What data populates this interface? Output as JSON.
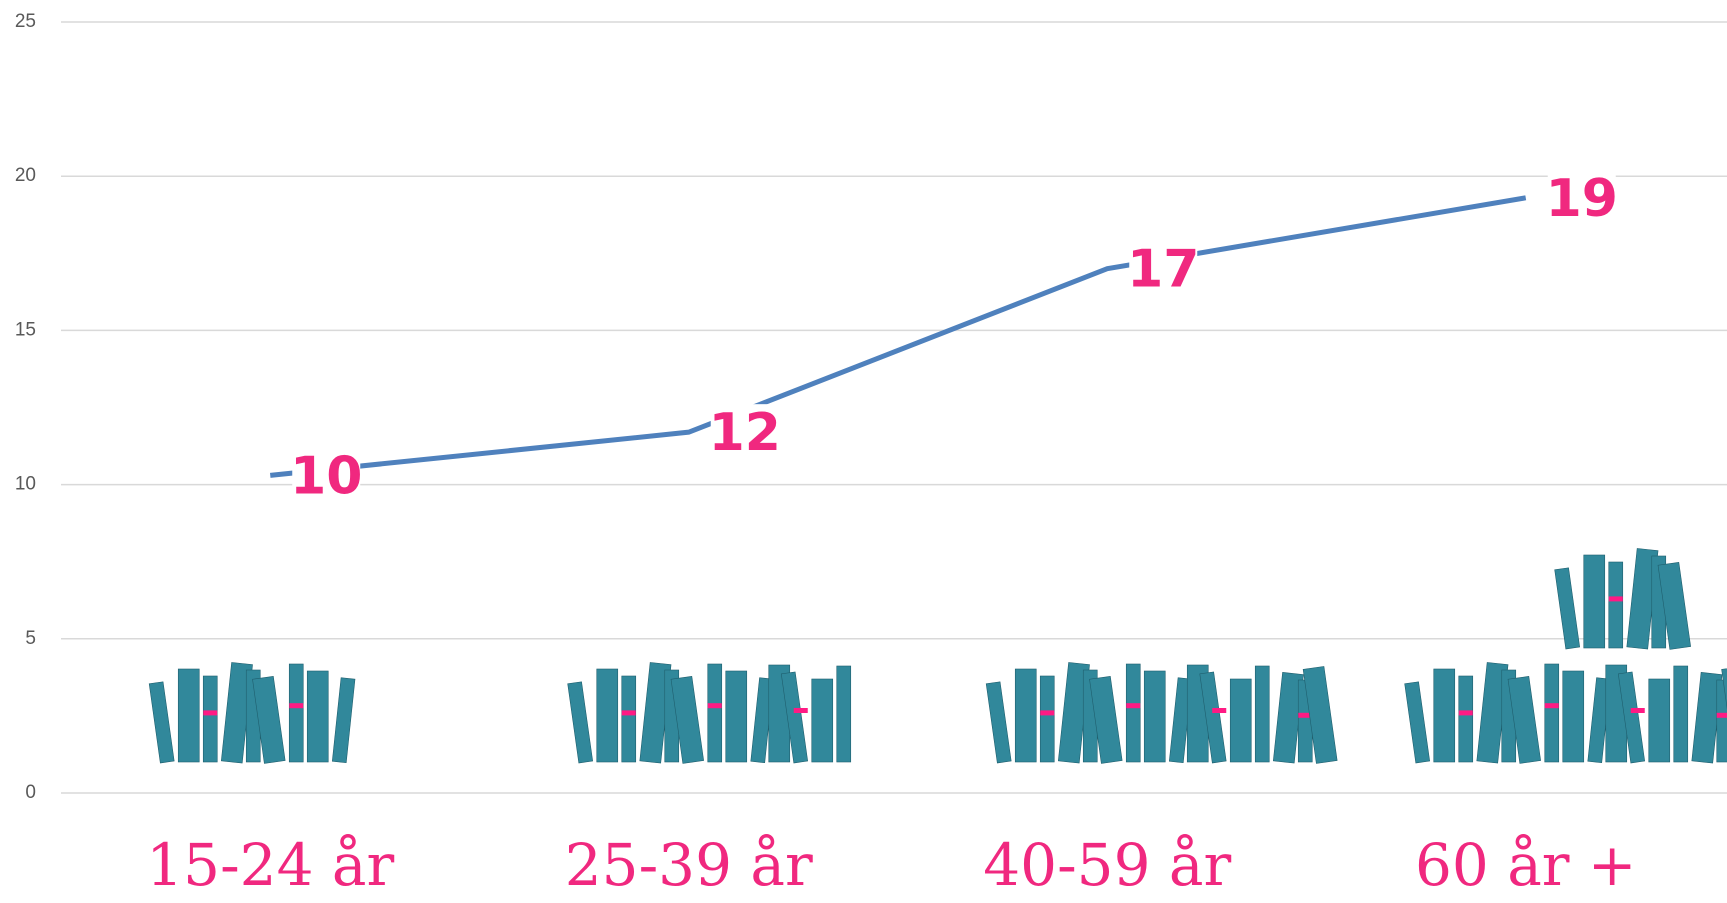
{
  "chart_data": {
    "type": "line",
    "categories": [
      "15-24 år",
      "25-39 år",
      "40-59 år",
      "60 år +"
    ],
    "series": [
      {
        "color": "#4f81bd",
        "values": [
          10.3,
          11.7,
          17.0,
          19.3
        ],
        "value_labels": [
          "10",
          "12",
          "17",
          "19"
        ]
      }
    ],
    "ylim": [
      0,
      25
    ],
    "yticks": [
      0,
      5,
      10,
      15,
      20,
      25
    ],
    "grid": true
  }
}
